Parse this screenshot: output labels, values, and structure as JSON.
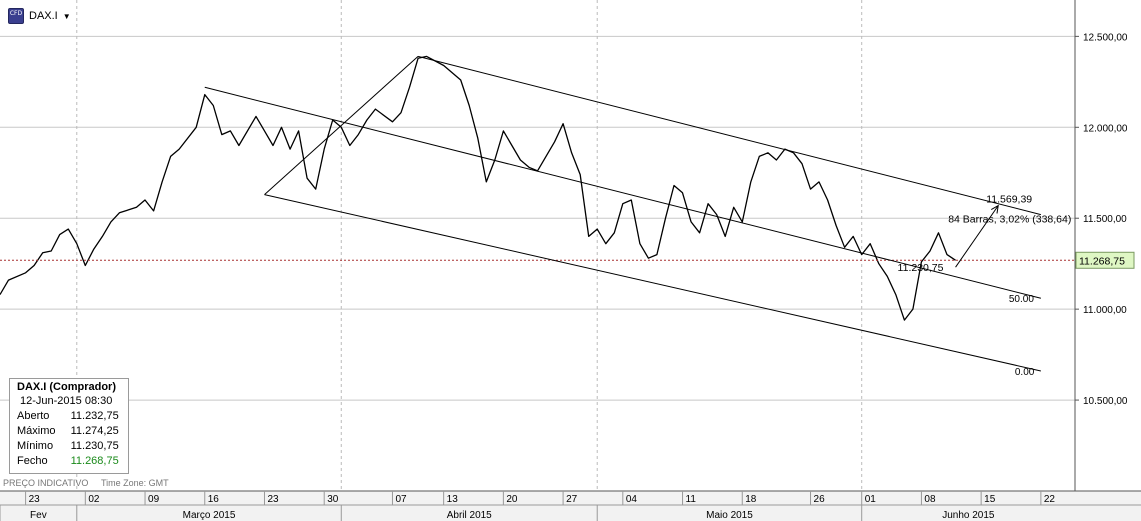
{
  "toolbar": {
    "symbol": "DAX.I",
    "icon": "cfd-icon",
    "icon_text": "CFD"
  },
  "footer": {
    "label": "PREÇO INDICATIVO",
    "timezone": "Time Zone: GMT"
  },
  "info_box": {
    "title": "DAX.I (Comprador)",
    "timestamp": "12-Jun-2015 08:30",
    "rows": [
      {
        "label": "Aberto",
        "value": "11.232,75"
      },
      {
        "label": "Máximo",
        "value": "11.274,25"
      },
      {
        "label": "Mínimo",
        "value": "11.230,75"
      },
      {
        "label": "Fecho",
        "value": "11.268,75"
      }
    ]
  },
  "colors": {
    "price_line": "#000000",
    "current_price": "#a83030",
    "grid": "#c8c8c8",
    "close_value": "#1a8a1a",
    "current_label_bg": "#dff7c4"
  },
  "chart_data": {
    "type": "line",
    "title": "DAX.I",
    "ylim": [
      10000,
      12700
    ],
    "y_ticks": [
      "12.500,00",
      "12.000,00",
      "11.500,00",
      "11.000,00",
      "10.500,00"
    ],
    "y_tick_values": [
      12500,
      12000,
      11500,
      11000,
      10500
    ],
    "x_day_labels": [
      "23",
      "02",
      "09",
      "16",
      "23",
      "30",
      "07",
      "13",
      "20",
      "27",
      "04",
      "11",
      "18",
      "26",
      "01",
      "08",
      "15",
      "22"
    ],
    "x_day_dates": [
      "2015-02-23",
      "2015-03-02",
      "2015-03-09",
      "2015-03-16",
      "2015-03-23",
      "2015-03-30",
      "2015-04-07",
      "2015-04-13",
      "2015-04-20",
      "2015-04-27",
      "2015-05-04",
      "2015-05-11",
      "2015-05-18",
      "2015-05-26",
      "2015-06-01",
      "2015-06-08",
      "2015-06-15",
      "2015-06-22"
    ],
    "x_months": [
      {
        "label": "Fev",
        "start": "2015-02-20",
        "end": "2015-03-01"
      },
      {
        "label": "Março 2015",
        "start": "2015-03-01",
        "end": "2015-04-01"
      },
      {
        "label": "Abril 2015",
        "start": "2015-04-01",
        "end": "2015-05-01"
      },
      {
        "label": "Maio 2015",
        "start": "2015-05-01",
        "end": "2015-06-01"
      },
      {
        "label": "Junho 2015",
        "start": "2015-06-01",
        "end": "2015-06-26"
      }
    ],
    "x_range": [
      "2015-02-20",
      "2015-06-26"
    ],
    "grid": true,
    "current_price": {
      "value": 11268.75,
      "label": "11.268,75"
    },
    "series": [
      {
        "values": [
          [
            "2015-02-20",
            11080
          ],
          [
            "2015-02-21",
            11160
          ],
          [
            "2015-02-23",
            11200
          ],
          [
            "2015-02-24",
            11240
          ],
          [
            "2015-02-25",
            11310
          ],
          [
            "2015-02-26",
            11320
          ],
          [
            "2015-02-27",
            11410
          ],
          [
            "2015-02-28",
            11440
          ],
          [
            "2015-03-01",
            11360
          ],
          [
            "2015-03-02",
            11240
          ],
          [
            "2015-03-03",
            11330
          ],
          [
            "2015-03-04",
            11400
          ],
          [
            "2015-03-05",
            11480
          ],
          [
            "2015-03-06",
            11530
          ],
          [
            "2015-03-08",
            11560
          ],
          [
            "2015-03-09",
            11600
          ],
          [
            "2015-03-10",
            11540
          ],
          [
            "2015-03-11",
            11700
          ],
          [
            "2015-03-12",
            11840
          ],
          [
            "2015-03-13",
            11880
          ],
          [
            "2015-03-15",
            12000
          ],
          [
            "2015-03-16",
            12180
          ],
          [
            "2015-03-17",
            12120
          ],
          [
            "2015-03-18",
            11960
          ],
          [
            "2015-03-19",
            11980
          ],
          [
            "2015-03-20",
            11900
          ],
          [
            "2015-03-22",
            12060
          ],
          [
            "2015-03-23",
            11980
          ],
          [
            "2015-03-24",
            11900
          ],
          [
            "2015-03-25",
            12000
          ],
          [
            "2015-03-26",
            11880
          ],
          [
            "2015-03-27",
            11980
          ],
          [
            "2015-03-28",
            11720
          ],
          [
            "2015-03-29",
            11660
          ],
          [
            "2015-03-30",
            11880
          ],
          [
            "2015-03-31",
            12040
          ],
          [
            "2015-04-01",
            12000
          ],
          [
            "2015-04-02",
            11900
          ],
          [
            "2015-04-03",
            11960
          ],
          [
            "2015-04-04",
            12040
          ],
          [
            "2015-04-05",
            12100
          ],
          [
            "2015-04-07",
            12030
          ],
          [
            "2015-04-08",
            12080
          ],
          [
            "2015-04-09",
            12220
          ],
          [
            "2015-04-10",
            12380
          ],
          [
            "2015-04-11",
            12390
          ],
          [
            "2015-04-13",
            12340
          ],
          [
            "2015-04-14",
            12300
          ],
          [
            "2015-04-15",
            12260
          ],
          [
            "2015-04-16",
            12120
          ],
          [
            "2015-04-17",
            11940
          ],
          [
            "2015-04-18",
            11700
          ],
          [
            "2015-04-19",
            11820
          ],
          [
            "2015-04-20",
            11980
          ],
          [
            "2015-04-21",
            11900
          ],
          [
            "2015-04-22",
            11820
          ],
          [
            "2015-04-23",
            11780
          ],
          [
            "2015-04-24",
            11760
          ],
          [
            "2015-04-25",
            11840
          ],
          [
            "2015-04-26",
            11920
          ],
          [
            "2015-04-27",
            12020
          ],
          [
            "2015-04-28",
            11860
          ],
          [
            "2015-04-29",
            11740
          ],
          [
            "2015-04-30",
            11400
          ],
          [
            "2015-05-01",
            11440
          ],
          [
            "2015-05-02",
            11360
          ],
          [
            "2015-05-03",
            11420
          ],
          [
            "2015-05-04",
            11580
          ],
          [
            "2015-05-05",
            11600
          ],
          [
            "2015-05-06",
            11360
          ],
          [
            "2015-05-07",
            11280
          ],
          [
            "2015-05-08",
            11300
          ],
          [
            "2015-05-09",
            11500
          ],
          [
            "2015-05-10",
            11680
          ],
          [
            "2015-05-11",
            11640
          ],
          [
            "2015-05-12",
            11480
          ],
          [
            "2015-05-13",
            11420
          ],
          [
            "2015-05-14",
            11580
          ],
          [
            "2015-05-15",
            11520
          ],
          [
            "2015-05-16",
            11400
          ],
          [
            "2015-05-17",
            11560
          ],
          [
            "2015-05-18",
            11480
          ],
          [
            "2015-05-19",
            11700
          ],
          [
            "2015-05-20",
            11840
          ],
          [
            "2015-05-21",
            11860
          ],
          [
            "2015-05-22",
            11820
          ],
          [
            "2015-05-23",
            11880
          ],
          [
            "2015-05-24",
            11860
          ],
          [
            "2015-05-25",
            11800
          ],
          [
            "2015-05-26",
            11660
          ],
          [
            "2015-05-27",
            11700
          ],
          [
            "2015-05-28",
            11600
          ],
          [
            "2015-05-29",
            11460
          ],
          [
            "2015-05-30",
            11340
          ],
          [
            "2015-05-31",
            11400
          ],
          [
            "2015-06-01",
            11300
          ],
          [
            "2015-06-02",
            11360
          ],
          [
            "2015-06-03",
            11250
          ],
          [
            "2015-06-04",
            11180
          ],
          [
            "2015-06-05",
            11080
          ],
          [
            "2015-06-06",
            10940
          ],
          [
            "2015-06-07",
            11000
          ],
          [
            "2015-06-08",
            11260
          ],
          [
            "2015-06-09",
            11320
          ],
          [
            "2015-06-10",
            11420
          ],
          [
            "2015-06-11",
            11300
          ],
          [
            "2015-06-12",
            11268.75
          ]
        ]
      }
    ],
    "drawings": {
      "channel_upper": {
        "from": [
          "2015-04-10",
          12390
        ],
        "to": [
          "2015-06-22",
          11520
        ]
      },
      "channel_mid": {
        "from": [
          "2015-03-16",
          12220
        ],
        "to": [
          "2015-06-22",
          11060
        ],
        "label": "50.00"
      },
      "channel_lower": {
        "from": [
          "2015-03-23",
          11630
        ],
        "to": [
          "2015-06-22",
          10660
        ],
        "label": "0.00"
      },
      "anchor_line": {
        "from": [
          "2015-03-23",
          11630
        ],
        "to": [
          "2015-04-10",
          12390
        ]
      },
      "projection": {
        "from": [
          "2015-06-12",
          11230.75
        ],
        "to": [
          "2015-06-17",
          11569.39
        ],
        "start_label": "11.230,75",
        "end_label": "11.569,39",
        "info": "84 Barras, 3,02% (338,64)"
      }
    }
  }
}
